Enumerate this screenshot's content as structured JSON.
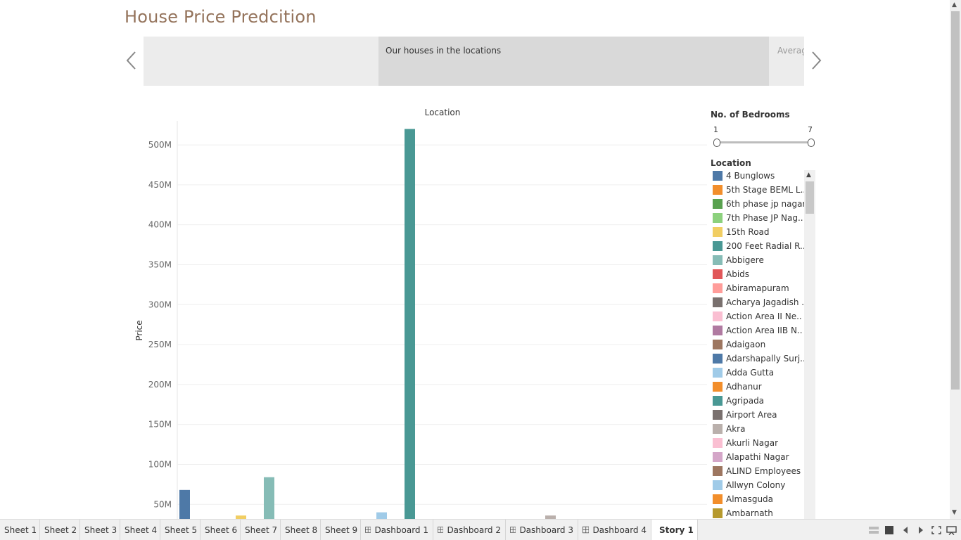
{
  "story": {
    "title": "House Price Predcition",
    "points": [
      "",
      "Our houses in the locations",
      "Averag"
    ]
  },
  "filters": {
    "bedrooms": {
      "title": "No. of Bedrooms",
      "min": "1",
      "max": "7"
    },
    "location_legend_title": "Location"
  },
  "legend": [
    {
      "label": "4 Bunglows",
      "color": "#4e79a7"
    },
    {
      "label": "5th Stage BEML L..",
      "color": "#f28e2b"
    },
    {
      "label": "6th phase jp nagar",
      "color": "#59a14f"
    },
    {
      "label": "7th Phase JP Nag..",
      "color": "#8cd17d"
    },
    {
      "label": "15th Road",
      "color": "#f1ce63"
    },
    {
      "label": "200 Feet Radial R..",
      "color": "#499894"
    },
    {
      "label": "Abbigere",
      "color": "#86bcb6"
    },
    {
      "label": "Abids",
      "color": "#e15759"
    },
    {
      "label": "Abiramapuram",
      "color": "#ff9d9a"
    },
    {
      "label": "Acharya Jagadish ..",
      "color": "#79706e"
    },
    {
      "label": "Action Area II Ne..",
      "color": "#fabfd2"
    },
    {
      "label": "Action Area IIB N..",
      "color": "#b07aa1"
    },
    {
      "label": "Adaigaon",
      "color": "#9d7660"
    },
    {
      "label": "Adarshapally Surj..",
      "color": "#4e79a7"
    },
    {
      "label": "Adda Gutta",
      "color": "#a0cbe8"
    },
    {
      "label": "Adhanur",
      "color": "#f28e2b"
    },
    {
      "label": "Agripada",
      "color": "#499894"
    },
    {
      "label": "Airport Area",
      "color": "#79706e"
    },
    {
      "label": "Akra",
      "color": "#bab0ac"
    },
    {
      "label": "Akurli Nagar",
      "color": "#fabfd2"
    },
    {
      "label": "Alapathi Nagar",
      "color": "#d4a6c8"
    },
    {
      "label": "ALIND Employees ..",
      "color": "#9d7660"
    },
    {
      "label": "Allwyn Colony",
      "color": "#a0cbe8"
    },
    {
      "label": "Almasguda",
      "color": "#f28e2b"
    },
    {
      "label": "Ambarnath",
      "color": "#b6992d"
    }
  ],
  "chart_data": {
    "type": "bar",
    "title": "Location",
    "ylabel": "Price",
    "xlabel": "",
    "ylim": [
      30,
      530
    ],
    "y_ticks": [
      "50M",
      "100M",
      "150M",
      "200M",
      "250M",
      "300M",
      "350M",
      "400M",
      "450M",
      "500M"
    ],
    "y_tick_values": [
      50,
      100,
      150,
      200,
      250,
      300,
      350,
      400,
      450,
      500
    ],
    "y_unit": "M",
    "legend_position": "right",
    "grid": true,
    "bars": [
      {
        "category": "4 Bunglows",
        "value": 68,
        "color": "#4e79a7",
        "index": 0
      },
      {
        "category": "15th Road",
        "value": 36,
        "color": "#f1ce63",
        "index": 4
      },
      {
        "category": "Abbigere",
        "value": 84,
        "color": "#86bcb6",
        "index": 6
      },
      {
        "category": "Adda Gutta",
        "value": 40,
        "color": "#a0cbe8",
        "index": 14
      },
      {
        "category": "Agripada",
        "value": 520,
        "color": "#499894",
        "index": 16
      },
      {
        "category": "Akra",
        "value": 36,
        "color": "#bab0ac",
        "index": 26
      }
    ]
  },
  "tabs": [
    {
      "label": "Sheet 1",
      "kind": "sheet"
    },
    {
      "label": "Sheet 2",
      "kind": "sheet"
    },
    {
      "label": "Sheet 3",
      "kind": "sheet"
    },
    {
      "label": "Sheet 4",
      "kind": "sheet"
    },
    {
      "label": "Sheet 5",
      "kind": "sheet"
    },
    {
      "label": "Sheet 6",
      "kind": "sheet"
    },
    {
      "label": "Sheet 7",
      "kind": "sheet"
    },
    {
      "label": "Sheet 8",
      "kind": "sheet"
    },
    {
      "label": "Sheet 9",
      "kind": "sheet"
    },
    {
      "label": "Dashboard 1",
      "kind": "dashboard"
    },
    {
      "label": "Dashboard 2",
      "kind": "dashboard"
    },
    {
      "label": "Dashboard 3",
      "kind": "dashboard"
    },
    {
      "label": "Dashboard 4",
      "kind": "dashboard"
    },
    {
      "label": "Story 1",
      "kind": "story",
      "active": true
    }
  ],
  "status_icons": [
    "show-sheets-icon",
    "filmstrip-icon",
    "prev-sheet-icon",
    "next-sheet-icon",
    "fit-screen-icon",
    "presentation-mode-icon"
  ]
}
